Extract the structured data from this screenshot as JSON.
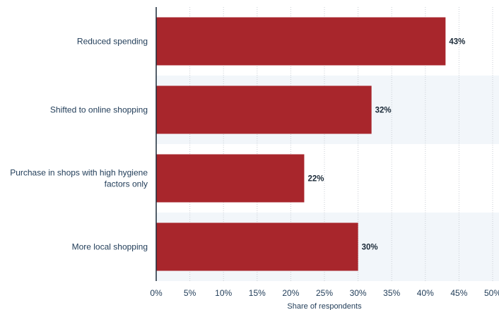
{
  "chart_data": {
    "type": "bar",
    "orientation": "horizontal",
    "categories": [
      "Reduced spending",
      "Shifted to online shopping",
      "Purchase in shops with high hygiene factors only",
      "More local shopping"
    ],
    "category_lines": [
      [
        "Reduced spending"
      ],
      [
        "Shifted to online shopping"
      ],
      [
        "Purchase in shops with high hygiene",
        "factors only"
      ],
      [
        "More local shopping"
      ]
    ],
    "values": [
      43,
      32,
      22,
      30
    ],
    "data_labels": [
      "43%",
      "32%",
      "22%",
      "30%"
    ],
    "xlim": [
      0,
      50
    ],
    "x_ticks": [
      0,
      5,
      10,
      15,
      20,
      25,
      30,
      35,
      40,
      45,
      50
    ],
    "x_tick_labels": [
      "0%",
      "5%",
      "10%",
      "15%",
      "20%",
      "25%",
      "30%",
      "35%",
      "40%",
      "45%",
      "50%"
    ],
    "xlabel": "Share of respondents",
    "ylabel": "",
    "title": "",
    "grid": true,
    "bar_color": "#a8262c",
    "band_color": "#f2f6fa"
  }
}
